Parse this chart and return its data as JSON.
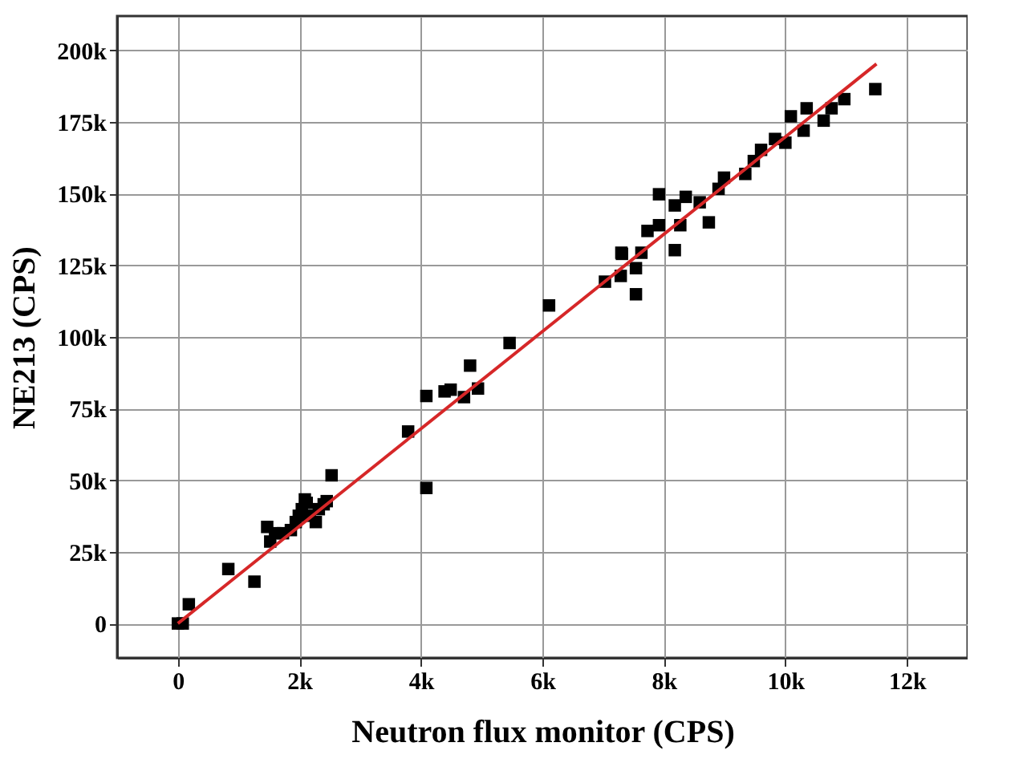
{
  "chart_data": {
    "type": "scatter",
    "xlabel": "Neutron flux monitor (CPS)",
    "ylabel": "NE213 (CPS)",
    "xlim": [
      -1000,
      13000
    ],
    "ylim": [
      -12000,
      212000
    ],
    "xticks": [
      {
        "value": 0,
        "label": "0"
      },
      {
        "value": 2000,
        "label": "2k"
      },
      {
        "value": 4000,
        "label": "4k"
      },
      {
        "value": 6000,
        "label": "6k"
      },
      {
        "value": 8000,
        "label": "8k"
      },
      {
        "value": 10000,
        "label": "10k"
      },
      {
        "value": 12000,
        "label": "12k"
      }
    ],
    "yticks": [
      {
        "value": 0,
        "label": "0"
      },
      {
        "value": 25000,
        "label": "25k"
      },
      {
        "value": 50000,
        "label": "50k"
      },
      {
        "value": 75000,
        "label": "75k"
      },
      {
        "value": 100000,
        "label": "100k"
      },
      {
        "value": 125000,
        "label": "125k"
      },
      {
        "value": 150000,
        "label": "150k"
      },
      {
        "value": 175000,
        "label": "175k"
      },
      {
        "value": 200000,
        "label": "200k"
      }
    ],
    "grid": true,
    "series": [
      {
        "marker": "square",
        "color": "#000000",
        "x": [
          0,
          80,
          180,
          830,
          1260,
          1470,
          1520,
          1600,
          1730,
          1860,
          1940,
          1990,
          2040,
          2120,
          2170,
          2320,
          2400,
          2450,
          2530,
          2090,
          2270,
          3790,
          4090,
          4090,
          4390,
          4490,
          4710,
          4810,
          4940,
          5460,
          6110,
          7030,
          7290,
          7310,
          7540,
          7540,
          7630,
          8180,
          7920,
          7300,
          7730,
          7920,
          8180,
          8360,
          8270,
          8590,
          8740,
          8900,
          8990,
          9340,
          9480,
          9600,
          9830,
          10000,
          10090,
          10300,
          10350,
          10630,
          10760,
          10970,
          11480
        ],
        "values": [
          0,
          0,
          6700,
          19000,
          14600,
          33700,
          28600,
          31500,
          31500,
          32600,
          35400,
          37600,
          39900,
          42100,
          37600,
          39900,
          41600,
          42700,
          51700,
          43300,
          35400,
          67000,
          79400,
          47300,
          81000,
          81600,
          79000,
          90000,
          82000,
          97900,
          111000,
          119300,
          121300,
          129000,
          114900,
          124000,
          129400,
          130300,
          149800,
          129400,
          137000,
          139000,
          145900,
          148900,
          139000,
          147000,
          140000,
          151700,
          155600,
          156900,
          161400,
          165300,
          169100,
          167800,
          177000,
          172000,
          179800,
          175500,
          179800,
          183000,
          186500
        ]
      },
      {
        "type": "line",
        "color": "#d62728",
        "line_style": "solid",
        "x": [
          0,
          11500
        ],
        "values": [
          0,
          195300
        ]
      }
    ]
  }
}
